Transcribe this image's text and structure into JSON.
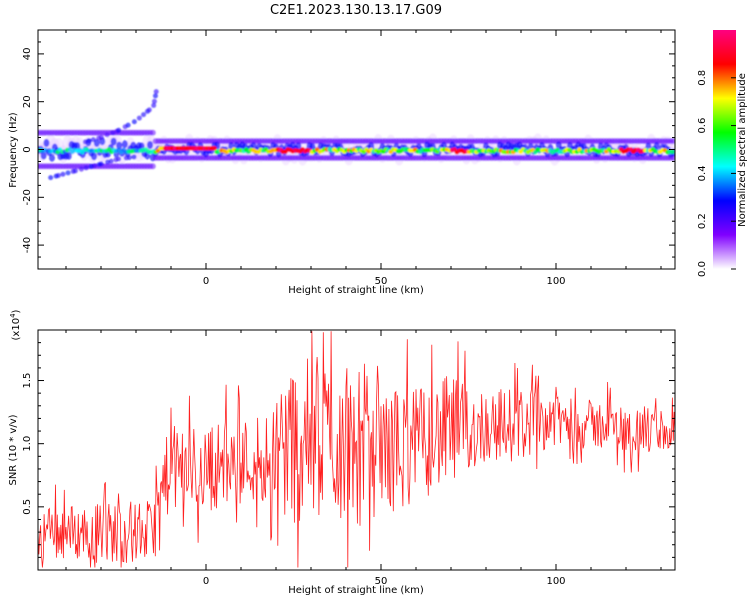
{
  "figure_title": "C2E1.2023.130.13.17.G09",
  "colorbar": {
    "label": "Normalized spectral amplitude",
    "ticks": [
      0.0,
      0.2,
      0.4,
      0.6,
      0.8
    ],
    "tick_labels": [
      "0.0",
      "0.2",
      "0.4",
      "0.6",
      "0.8"
    ],
    "range": [
      0,
      1
    ],
    "colormap": [
      "#ffffff",
      "#8000ff",
      "#0000ff",
      "#00ffff",
      "#00ff00",
      "#ffff00",
      "#ff0000",
      "#ff0080"
    ]
  },
  "chart_data": [
    {
      "type": "heatmap",
      "ylabel": "Frequency (Hz)",
      "xlabel": "Height of straight line (km)",
      "xlim": [
        -48,
        134
      ],
      "ylim": [
        -50,
        50
      ],
      "x_ticks": [
        0,
        50,
        100
      ],
      "x_tick_labels": [
        "0",
        "50",
        "100"
      ],
      "y_ticks": [
        -40,
        -20,
        0,
        20,
        40
      ],
      "y_tick_labels": [
        "-40",
        "-20",
        "0",
        "20",
        "40"
      ],
      "features": {
        "main_band_frequency_hz": 0,
        "main_band_x_range": [
          -48,
          134
        ],
        "secondary_branch": [
          [
            -35,
            3
          ],
          [
            -30,
            5
          ],
          [
            -25,
            8
          ],
          [
            -20,
            12
          ],
          [
            -15,
            18
          ],
          [
            -14,
            26
          ]
        ],
        "lower_branch": [
          [
            -45,
            -12
          ],
          [
            -40,
            -10
          ],
          [
            -35,
            -8
          ],
          [
            -30,
            -6
          ],
          [
            -25,
            -4
          ],
          [
            -20,
            -3
          ]
        ],
        "peak_amplitude_segments": [
          [
            -12,
            3
          ],
          [
            20,
            30
          ],
          [
            70,
            75
          ],
          [
            118,
            125
          ]
        ]
      }
    },
    {
      "type": "line",
      "ylabel": "SNR (10 * v/v)",
      "y_multiplier_label": "(x10",
      "y_multiplier_exp": "4",
      "y_multiplier_close": ")",
      "xlabel": "Height of straight line (km)",
      "xlim": [
        -48,
        134
      ],
      "ylim": [
        0,
        19000
      ],
      "x_ticks": [
        0,
        50,
        100
      ],
      "x_tick_labels": [
        "0",
        "50",
        "100"
      ],
      "y_ticks": [
        5000,
        10000,
        15000
      ],
      "y_tick_labels": [
        "0.5",
        "1.0",
        "1.5"
      ],
      "series": [
        {
          "color": "#ff2020",
          "envelope_x": [
            -48,
            -30,
            -20,
            -15,
            -12,
            -10,
            -5,
            0,
            5,
            10,
            15,
            18,
            20,
            25,
            30,
            35,
            40,
            45,
            50,
            55,
            60,
            65,
            70,
            75,
            80,
            85,
            90,
            95,
            100,
            105,
            110,
            115,
            120,
            125,
            130,
            134
          ],
          "mean": [
            3000,
            3000,
            3000,
            3000,
            7000,
            8000,
            8000,
            8000,
            8500,
            8500,
            9000,
            9000,
            10000,
            10000,
            10500,
            10500,
            10000,
            10000,
            9500,
            9500,
            10000,
            10500,
            11000,
            11000,
            11500,
            11500,
            11500,
            12000,
            12000,
            11500,
            11500,
            11500,
            11000,
            11000,
            11000,
            11000
          ],
          "amplitude": [
            2000,
            2500,
            2500,
            2500,
            3000,
            3500,
            3500,
            3500,
            3500,
            3500,
            3500,
            4000,
            6000,
            6500,
            6500,
            6500,
            6500,
            6500,
            5000,
            5000,
            4500,
            4500,
            4500,
            3500,
            3000,
            3000,
            3000,
            2500,
            2500,
            2000,
            2000,
            2000,
            2000,
            2000,
            2000,
            2000
          ]
        }
      ]
    }
  ]
}
